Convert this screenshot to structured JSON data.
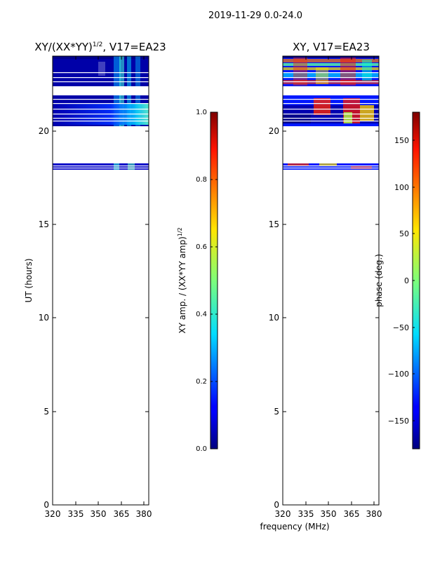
{
  "figure": {
    "suptitle": "2019-11-29 0.0-24.0",
    "shared_xlabel": "frequency (MHz)"
  },
  "chart_data": [
    {
      "type": "heatmap",
      "title_main": "XY/(XX*YY)",
      "title_sup": "1/2",
      "title_rest": ", V17=EA23",
      "xlabel": "",
      "ylabel": "UT (hours)",
      "xlim": [
        320,
        383
      ],
      "ylim": [
        0,
        24
      ],
      "xticks": [
        "320",
        "335",
        "350",
        "365",
        "380"
      ],
      "yticks": [
        "0",
        "5",
        "10",
        "15",
        "20"
      ],
      "colormap": "jet",
      "colorbar": {
        "label_main": "XY amp. / (XX*YY amp)",
        "label_sup": "1/2",
        "range": [
          0.0,
          1.0
        ],
        "ticks": [
          "0.0",
          "0.2",
          "0.4",
          "0.6",
          "0.8",
          "1.0"
        ]
      },
      "data_segments_hours": [
        [
          18.0,
          18.3
        ],
        [
          20.3,
          24.0
        ]
      ]
    },
    {
      "type": "heatmap",
      "title_main": "XY, V17=EA23",
      "xlabel": "",
      "ylabel": "",
      "xlim": [
        320,
        383
      ],
      "ylim": [
        0,
        24
      ],
      "xticks": [
        "320",
        "335",
        "350",
        "365",
        "380"
      ],
      "yticks": [
        "0",
        "5",
        "10",
        "15",
        "20"
      ],
      "colormap": "jet",
      "colorbar": {
        "label_main": "phase (deg.)",
        "range": [
          -180,
          180
        ],
        "ticks": [
          "−150",
          "−100",
          "−50",
          "0",
          "50",
          "100",
          "150"
        ]
      },
      "data_segments_hours": [
        [
          18.0,
          18.3
        ],
        [
          20.3,
          24.0
        ]
      ]
    }
  ]
}
